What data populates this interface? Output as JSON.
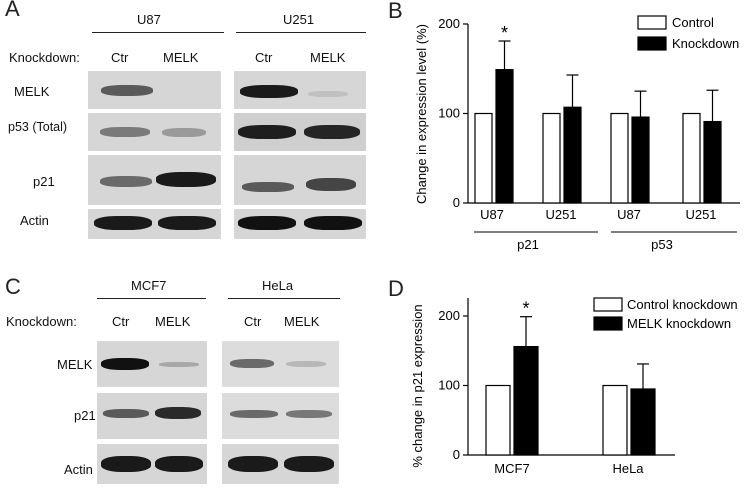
{
  "panels": {
    "A": {
      "letter": "A",
      "knockdown_label": "Knockdown:",
      "groups": [
        {
          "name": "U87",
          "ctr": "Ctr",
          "kd": "MELK"
        },
        {
          "name": "U251",
          "ctr": "Ctr",
          "kd": "MELK"
        }
      ],
      "rows": [
        "MELK",
        "p53 (Total)",
        "p21",
        "Actin"
      ]
    },
    "B": {
      "letter": "B",
      "legend": [
        "Control",
        "Knockdown"
      ],
      "ylabel": "Change in expression level (%)",
      "yticks": [
        "0",
        "100",
        "200"
      ],
      "xticks": [
        "U87",
        "U251",
        "U87",
        "U251"
      ],
      "groups": [
        "p21",
        "p53"
      ],
      "star": "*"
    },
    "C": {
      "letter": "C",
      "knockdown_label": "Knockdown:",
      "groups": [
        {
          "name": "MCF7",
          "ctr": "Ctr",
          "kd": "MELK"
        },
        {
          "name": "HeLa",
          "ctr": "Ctr",
          "kd": "MELK"
        }
      ],
      "rows": [
        "MELK",
        "p21",
        "Actin"
      ]
    },
    "D": {
      "letter": "D",
      "legend": [
        "Control knockdown",
        "MELK knockdown"
      ],
      "ylabel": "% change in p21 expression",
      "yticks": [
        "0",
        "100",
        "200"
      ],
      "xticks": [
        "MCF7",
        "HeLa"
      ],
      "star": "*"
    }
  },
  "chart_data": [
    {
      "type": "bar",
      "ylabel": "Change in expression level (%)",
      "ylim": [
        0,
        200
      ],
      "categories": [
        "U87",
        "U251",
        "U87",
        "U251"
      ],
      "category_groups": [
        "p21",
        "p21",
        "p53",
        "p53"
      ],
      "series": [
        {
          "name": "Control",
          "color": "#ffffff",
          "values": [
            100,
            100,
            100,
            100
          ],
          "errors": [
            0,
            0,
            0,
            0
          ]
        },
        {
          "name": "Knockdown",
          "color": "#000000",
          "values": [
            149,
            107,
            96,
            91
          ],
          "errors": [
            32,
            36,
            29,
            35
          ]
        }
      ],
      "significance": [
        {
          "category": 0,
          "series": 1,
          "label": "*"
        }
      ],
      "legend": "top-right",
      "grid": false
    },
    {
      "type": "bar",
      "ylabel": "% change in p21 expression",
      "ylim": [
        0,
        200
      ],
      "categories": [
        "MCF7",
        "HeLa"
      ],
      "series": [
        {
          "name": "Control knockdown",
          "color": "#ffffff",
          "values": [
            100,
            100
          ],
          "errors": [
            0,
            0
          ]
        },
        {
          "name": "MELK knockdown",
          "color": "#000000",
          "values": [
            156,
            95
          ],
          "errors": [
            43,
            36
          ]
        }
      ],
      "significance": [
        {
          "category": 0,
          "series": 1,
          "label": "*"
        }
      ],
      "legend": "top-right",
      "grid": false
    }
  ]
}
